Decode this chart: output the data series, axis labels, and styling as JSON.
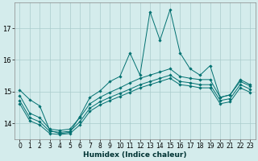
{
  "xlabel": "Humidex (Indice chaleur)",
  "bg_color": "#d4ecec",
  "line_color": "#007070",
  "grid_color": "#aacccc",
  "xlim": [
    -0.5,
    23.5
  ],
  "ylim": [
    13.5,
    17.8
  ],
  "yticks": [
    14,
    15,
    16,
    17
  ],
  "xticks": [
    0,
    1,
    2,
    3,
    4,
    5,
    6,
    7,
    8,
    9,
    10,
    11,
    12,
    13,
    14,
    15,
    16,
    17,
    18,
    19,
    20,
    21,
    22,
    23
  ],
  "series": {
    "line1_volatile": {
      "x": [
        0,
        1,
        2,
        3,
        4,
        5,
        6,
        7,
        8,
        9,
        10,
        11,
        12,
        13,
        14,
        15,
        16,
        17,
        18,
        19,
        20,
        21,
        22,
        23
      ],
      "y": [
        15.05,
        14.75,
        14.55,
        13.78,
        13.68,
        13.72,
        14.22,
        14.82,
        15.02,
        15.32,
        15.48,
        16.22,
        15.52,
        17.52,
        16.62,
        17.58,
        16.22,
        15.72,
        15.52,
        15.82,
        14.82,
        14.9,
        15.38,
        15.22
      ]
    },
    "line2_upper": {
      "x": [
        0,
        1,
        2,
        3,
        4,
        5,
        6,
        7,
        8,
        9,
        10,
        11,
        12,
        13,
        14,
        15,
        16,
        17,
        18,
        19,
        20,
        21,
        22,
        23
      ],
      "y": [
        14.88,
        14.32,
        14.18,
        13.82,
        13.78,
        13.82,
        14.18,
        14.62,
        14.82,
        14.98,
        15.12,
        15.28,
        15.42,
        15.52,
        15.62,
        15.72,
        15.48,
        15.42,
        15.38,
        15.38,
        14.82,
        14.9,
        15.32,
        15.18
      ]
    },
    "line3_mid": {
      "x": [
        0,
        1,
        2,
        3,
        4,
        5,
        6,
        7,
        8,
        9,
        10,
        11,
        12,
        13,
        14,
        15,
        16,
        17,
        18,
        19,
        20,
        21,
        22,
        23
      ],
      "y": [
        14.72,
        14.18,
        14.05,
        13.75,
        13.72,
        13.75,
        14.05,
        14.48,
        14.68,
        14.82,
        14.95,
        15.08,
        15.22,
        15.32,
        15.42,
        15.52,
        15.32,
        15.28,
        15.22,
        15.22,
        14.72,
        14.78,
        15.22,
        15.08
      ]
    },
    "line4_lower": {
      "x": [
        0,
        1,
        2,
        3,
        4,
        5,
        6,
        7,
        8,
        9,
        10,
        11,
        12,
        13,
        14,
        15,
        16,
        17,
        18,
        19,
        20,
        21,
        22,
        23
      ],
      "y": [
        14.62,
        14.08,
        13.95,
        13.68,
        13.65,
        13.68,
        13.95,
        14.38,
        14.58,
        14.72,
        14.85,
        14.98,
        15.12,
        15.22,
        15.32,
        15.42,
        15.22,
        15.18,
        15.12,
        15.12,
        14.62,
        14.68,
        15.12,
        14.98
      ]
    }
  }
}
